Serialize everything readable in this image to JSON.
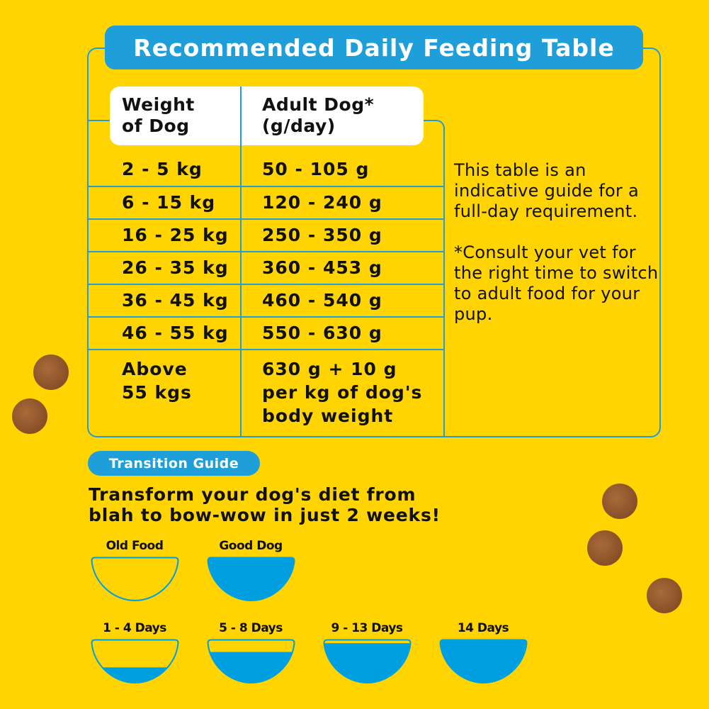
{
  "title": "Recommended Daily Feeding Table",
  "table": {
    "headers": [
      "Weight\nof Dog",
      "Adult Dog*\n(g/day)"
    ],
    "rows": [
      [
        "2 - 5 kg",
        "50 - 105 g"
      ],
      [
        "6 - 15 kg",
        "120 - 240 g"
      ],
      [
        "16 - 25 kg",
        "250 - 350 g"
      ],
      [
        "26 - 35 kg",
        "360 - 453 g"
      ],
      [
        "36 - 45 kg",
        "460 - 540 g"
      ],
      [
        "46 - 55 kg",
        "550 - 630 g"
      ],
      [
        "Above\n55 kgs",
        "630 g + 10 g\nper kg of dog's\nbody weight"
      ]
    ]
  },
  "note": {
    "p1": "This table is an indicative guide for a full-day requirement.",
    "p2": "*Consult your vet for the right time to switch to adult food for your pup."
  },
  "transition": {
    "pill": "Transition Guide",
    "headline": "Transform your dog's diet from\nblah to bow-wow in just 2 weeks!",
    "legend": [
      {
        "label": "Old Food",
        "fill": 0
      },
      {
        "label": "Good Dog",
        "fill": 1
      }
    ],
    "stages": [
      {
        "label": "1 - 4 Days",
        "fill": 0.35
      },
      {
        "label": "5 - 8 Days",
        "fill": 0.7
      },
      {
        "label": "9 - 13 Days",
        "fill": 0.9
      },
      {
        "label": "14 Days",
        "fill": 1
      }
    ]
  },
  "colors": {
    "background": "#ffd400",
    "accent": "#1e9fd9",
    "bowl_fill": "#009fe0"
  }
}
